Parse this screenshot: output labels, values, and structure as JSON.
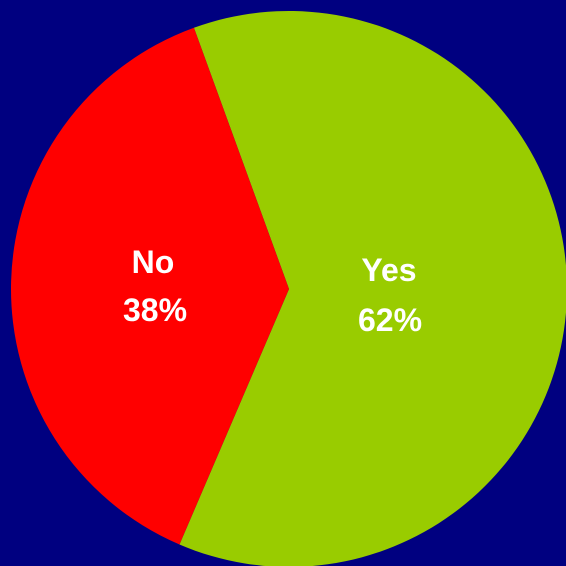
{
  "chart_data": {
    "type": "pie",
    "title": "",
    "slices": [
      {
        "label": "Yes",
        "value": 62,
        "value_label": "62%",
        "color": "#99cc00"
      },
      {
        "label": "No",
        "value": 38,
        "value_label": "38%",
        "color": "#ff0000"
      }
    ],
    "background_color": "#000080",
    "legend": "none"
  }
}
